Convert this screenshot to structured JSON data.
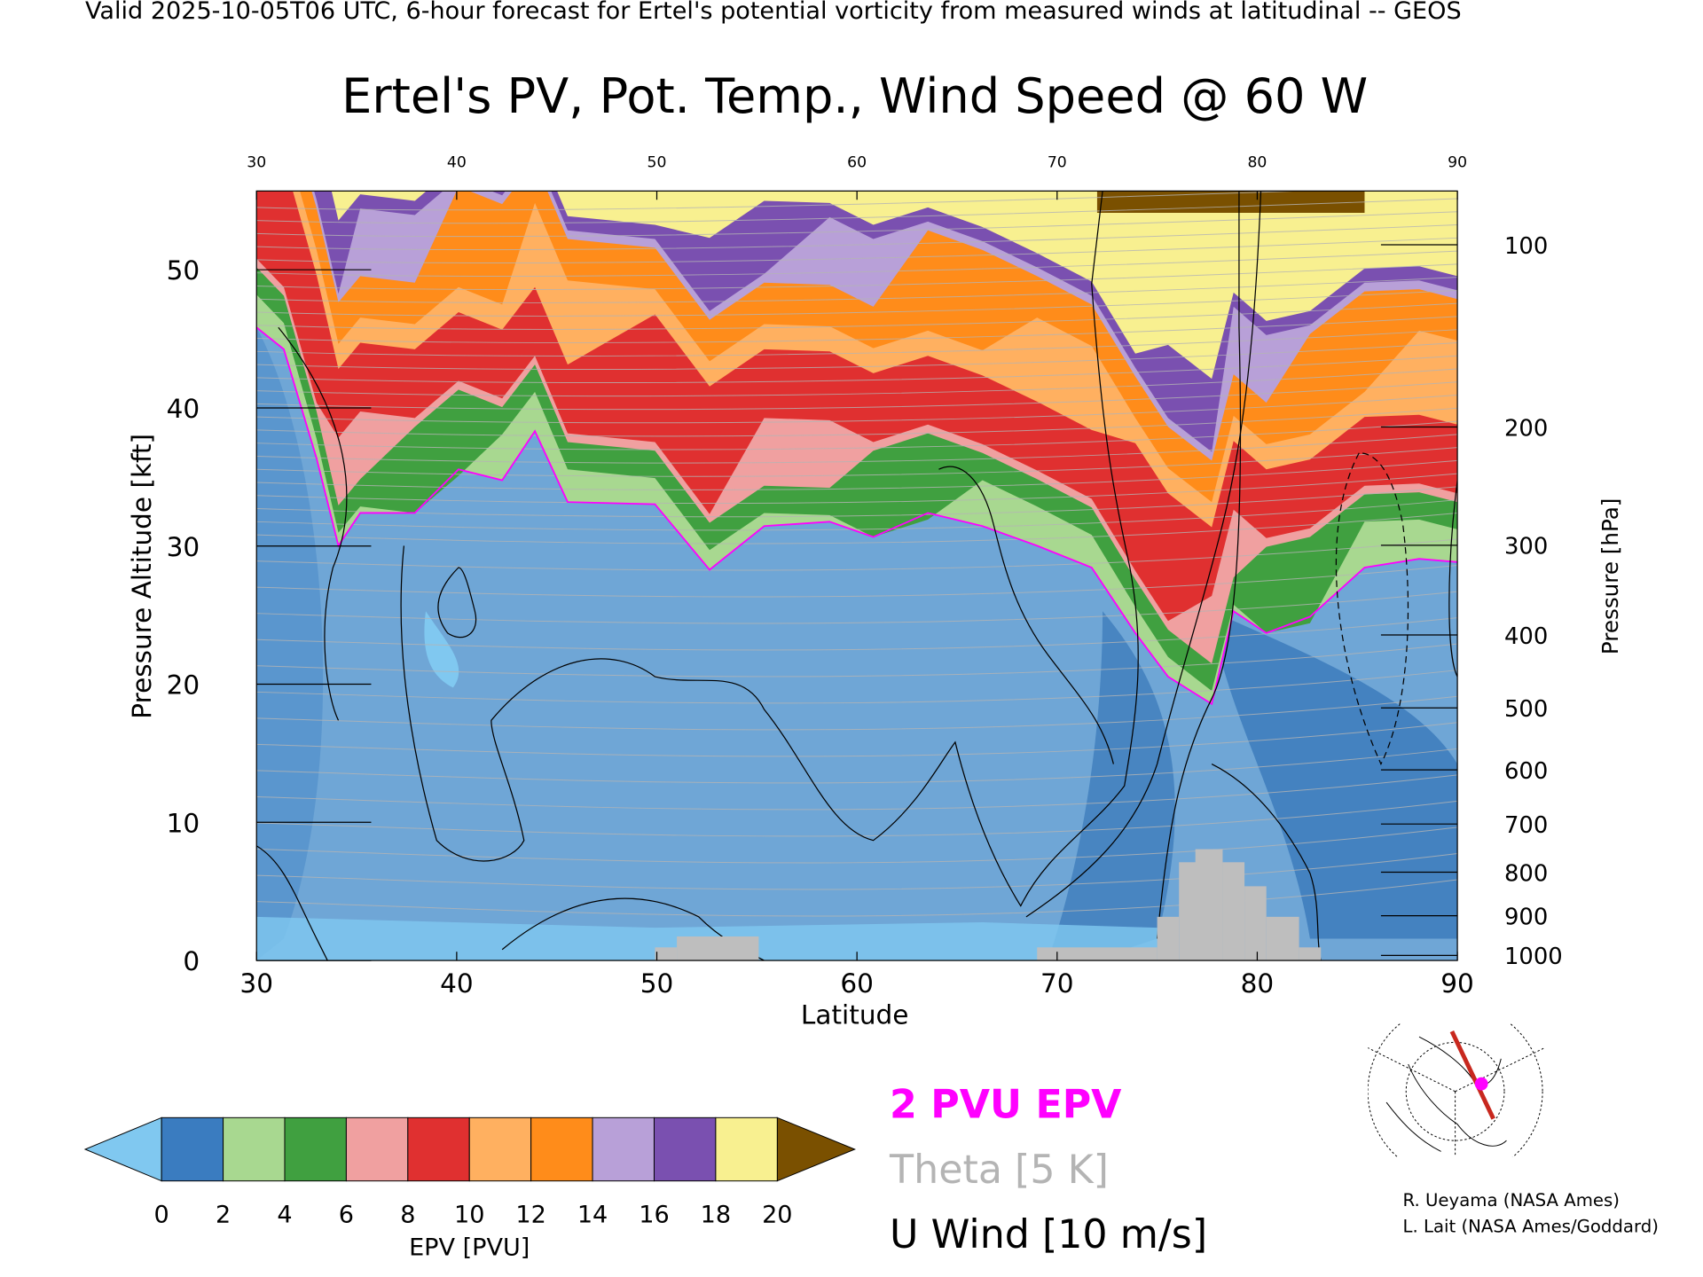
{
  "chart_data": {
    "type": "contour",
    "header": "Valid 2025-10-05T06 UTC, 6-hour forecast for Ertel's potential vorticity from measured winds at latitudinal -- GEOS",
    "title": "Ertel's PV, Pot. Temp., Wind Speed @ 60 W",
    "xlabel": "Latitude",
    "ylabel": "Pressure Altitude [kft]",
    "y2label": "Pressure [hPa]",
    "xlim": [
      30,
      90
    ],
    "xticks": [
      30,
      40,
      50,
      60,
      70,
      80,
      90
    ],
    "ylim": [
      0,
      55.7
    ],
    "yticks": [
      0,
      10,
      20,
      30,
      40,
      50
    ],
    "y2lim": [
      1013.25,
      80
    ],
    "y2ticks": [
      100,
      200,
      300,
      400,
      500,
      600,
      700,
      800,
      900,
      1000
    ],
    "colorbar": {
      "label": "EPV [PVU]",
      "ticks": [
        0,
        2,
        4,
        6,
        8,
        10,
        12,
        14,
        16,
        18,
        20
      ],
      "colors": [
        "#3a7cc0",
        "#a8d890",
        "#40a040",
        "#f0a0a0",
        "#e03030",
        "#ffb060",
        "#ff8c1a",
        "#b8a0d8",
        "#7a50b0",
        "#f8f090"
      ],
      "under_color": "#80c8f0",
      "over_color": "#7a5000"
    },
    "legend": [
      {
        "name": "2 PVU EPV",
        "color": "#ff00ff"
      },
      {
        "name": "Theta [5 K]",
        "color": "#b4b4b4"
      },
      {
        "name": "U Wind [10 m/s]",
        "color": "#000000"
      }
    ],
    "credits": [
      "R. Ueyama (NASA Ames)",
      "L. Lait (NASA Ames/Goddard)"
    ]
  }
}
